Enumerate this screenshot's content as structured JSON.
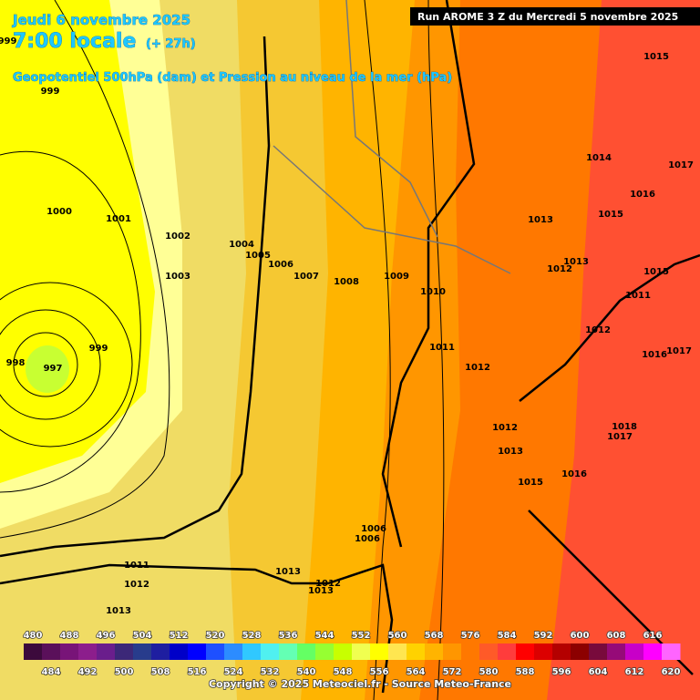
{
  "header": {
    "date": "Jeudi 6 novembre 2025",
    "time": "7:00 locale",
    "lead": "(+ 27h)",
    "subtitle": "Geopotentiel 500hPa (dam) et Pression au niveau de la mer (hPa)",
    "run": "Run AROME 3 Z du Mercredi 5 novembre 2025"
  },
  "isobar_labels": [
    999,
    999,
    1000,
    1001,
    1002,
    1003,
    1004,
    1005,
    1006,
    1007,
    1008,
    1009,
    1010,
    1011,
    1012,
    1013,
    1012,
    1013,
    1014,
    1015,
    1016,
    1015,
    1017,
    1015,
    1011,
    1012,
    1016,
    1017,
    1018,
    1017,
    1016,
    1015,
    1013,
    1012,
    1006,
    1006,
    1013,
    1012,
    1013,
    1011,
    1012,
    1013,
    998,
    997,
    999
  ],
  "colorbar": {
    "items": [
      {
        "value": 480,
        "color": "#3c0a3c"
      },
      {
        "value": 484,
        "color": "#5a105a"
      },
      {
        "value": 488,
        "color": "#781478"
      },
      {
        "value": 492,
        "color": "#8c1e8c"
      },
      {
        "value": 496,
        "color": "#6a1e8c"
      },
      {
        "value": 500,
        "color": "#3c2878"
      },
      {
        "value": 504,
        "color": "#283c8c"
      },
      {
        "value": 508,
        "color": "#1e1ea0"
      },
      {
        "value": 512,
        "color": "#0000c8"
      },
      {
        "value": 516,
        "color": "#0000ff"
      },
      {
        "value": 520,
        "color": "#1e50ff"
      },
      {
        "value": 524,
        "color": "#2c8cff"
      },
      {
        "value": 528,
        "color": "#30c8ff"
      },
      {
        "value": 532,
        "color": "#50f0f0"
      },
      {
        "value": 536,
        "color": "#64ffb4"
      },
      {
        "value": 540,
        "color": "#64ff64"
      },
      {
        "value": 544,
        "color": "#96ff32"
      },
      {
        "value": 548,
        "color": "#c8ff00"
      },
      {
        "value": 552,
        "color": "#f0ff50"
      },
      {
        "value": 556,
        "color": "#ffff00"
      },
      {
        "value": 560,
        "color": "#ffe650"
      },
      {
        "value": 564,
        "color": "#ffd200"
      },
      {
        "value": 568,
        "color": "#ffb400"
      },
      {
        "value": 572,
        "color": "#ff9600"
      },
      {
        "value": 576,
        "color": "#ff7800"
      },
      {
        "value": 580,
        "color": "#ff5a28"
      },
      {
        "value": 584,
        "color": "#ff3c3c"
      },
      {
        "value": 588,
        "color": "#ff0000"
      },
      {
        "value": 592,
        "color": "#dc0000"
      },
      {
        "value": 596,
        "color": "#b40000"
      },
      {
        "value": 600,
        "color": "#8c0000"
      },
      {
        "value": 604,
        "color": "#780a3c"
      },
      {
        "value": 608,
        "color": "#960a78"
      },
      {
        "value": 612,
        "color": "#c800c8"
      },
      {
        "value": 616,
        "color": "#ff00ff"
      },
      {
        "value": 620,
        "color": "#ff64ff"
      }
    ]
  },
  "footer": {
    "copyright": "Copyright © 2025 Meteociel.fr - Source Meteo-France"
  }
}
